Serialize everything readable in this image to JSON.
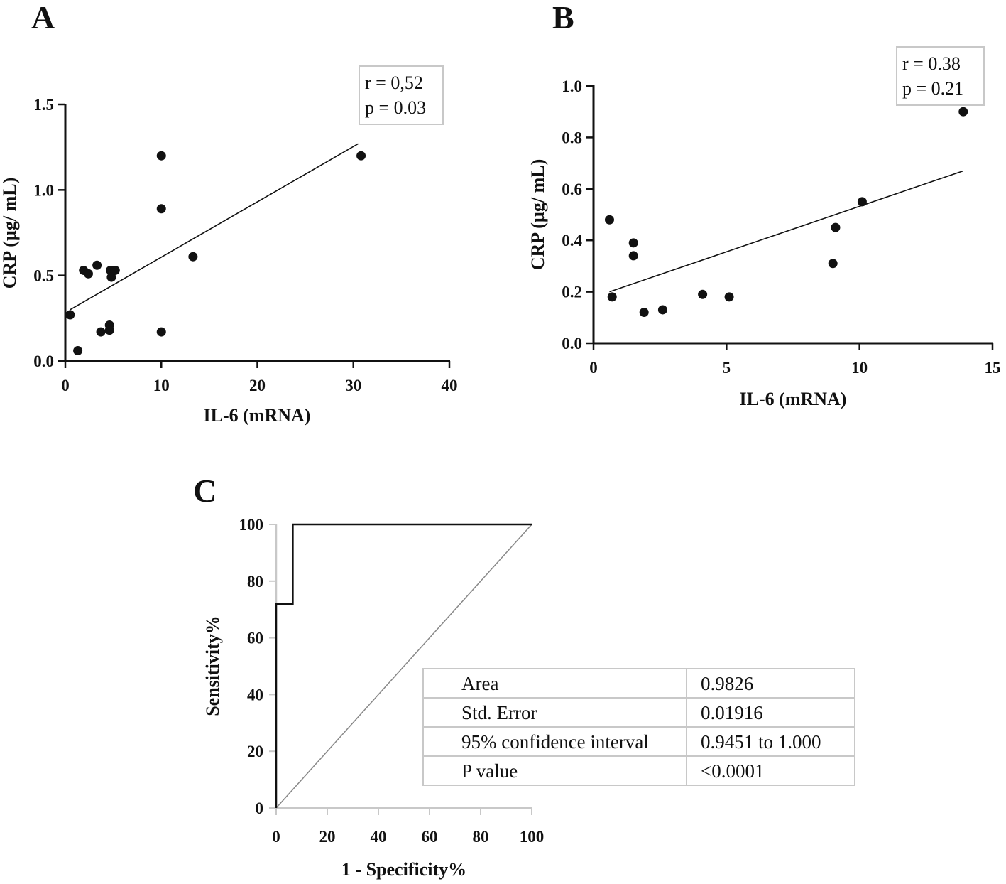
{
  "chart_data": [
    {
      "panel": "A",
      "type": "scatter",
      "xlabel": "IL-6 (mRNA)",
      "ylabel": "CRP (µg/ mL)",
      "xlim": [
        0,
        40
      ],
      "ylim": [
        0,
        1.5
      ],
      "xticks": [
        0,
        10,
        20,
        30,
        40
      ],
      "yticks": [
        0.0,
        0.5,
        1.0,
        1.5
      ],
      "xtick_labels": [
        "0",
        "10",
        "20",
        "30",
        "40"
      ],
      "ytick_labels": [
        "0.0",
        "0.5",
        "1.0",
        "1.5"
      ],
      "points": [
        {
          "x": 0.5,
          "y": 0.27
        },
        {
          "x": 1.3,
          "y": 0.06
        },
        {
          "x": 1.9,
          "y": 0.53
        },
        {
          "x": 2.4,
          "y": 0.51
        },
        {
          "x": 3.3,
          "y": 0.56
        },
        {
          "x": 3.7,
          "y": 0.17
        },
        {
          "x": 4.6,
          "y": 0.21
        },
        {
          "x": 4.6,
          "y": 0.18
        },
        {
          "x": 4.7,
          "y": 0.53
        },
        {
          "x": 4.8,
          "y": 0.49
        },
        {
          "x": 5.2,
          "y": 0.53
        },
        {
          "x": 10.0,
          "y": 1.2
        },
        {
          "x": 10.0,
          "y": 0.89
        },
        {
          "x": 10.0,
          "y": 0.17
        },
        {
          "x": 13.3,
          "y": 0.61
        },
        {
          "x": 30.8,
          "y": 1.2
        }
      ],
      "fit": {
        "x1": 0.5,
        "y1": 0.3,
        "x2": 30.5,
        "y2": 1.27
      },
      "annotation": [
        "r = 0,52",
        "p = 0.03"
      ]
    },
    {
      "panel": "B",
      "type": "scatter",
      "xlabel": "IL-6 (mRNA)",
      "ylabel": "CRP (µg/ mL)",
      "xlim": [
        0,
        15
      ],
      "ylim": [
        0,
        1.0
      ],
      "xticks": [
        0,
        5,
        10,
        15
      ],
      "yticks": [
        0.0,
        0.2,
        0.4,
        0.6,
        0.8,
        1.0
      ],
      "xtick_labels": [
        "0",
        "5",
        "10",
        "15"
      ],
      "ytick_labels": [
        "0.0",
        "0.2",
        "0.4",
        "0.6",
        "0.8",
        "1.0"
      ],
      "points": [
        {
          "x": 0.6,
          "y": 0.48
        },
        {
          "x": 0.7,
          "y": 0.18
        },
        {
          "x": 1.5,
          "y": 0.39
        },
        {
          "x": 1.5,
          "y": 0.34
        },
        {
          "x": 1.9,
          "y": 0.12
        },
        {
          "x": 2.6,
          "y": 0.13
        },
        {
          "x": 4.1,
          "y": 0.19
        },
        {
          "x": 5.1,
          "y": 0.18
        },
        {
          "x": 9.0,
          "y": 0.31
        },
        {
          "x": 9.1,
          "y": 0.45
        },
        {
          "x": 10.1,
          "y": 0.55
        },
        {
          "x": 13.9,
          "y": 0.9
        }
      ],
      "fit": {
        "x1": 0.6,
        "y1": 0.2,
        "x2": 13.9,
        "y2": 0.67
      },
      "annotation": [
        "r = 0.38",
        "p = 0.21"
      ]
    },
    {
      "panel": "C",
      "type": "line",
      "xlabel": "1 - Specificity%",
      "ylabel": "Sensitivity%",
      "xlim": [
        0,
        100
      ],
      "ylim": [
        0,
        100
      ],
      "xticks": [
        0,
        20,
        40,
        60,
        80,
        100
      ],
      "yticks": [
        0,
        20,
        40,
        60,
        80,
        100
      ],
      "xtick_labels": [
        "0",
        "20",
        "40",
        "60",
        "80",
        "100"
      ],
      "ytick_labels": [
        "0",
        "20",
        "40",
        "60",
        "80",
        "100"
      ],
      "roc": [
        {
          "x": 0,
          "y": 0
        },
        {
          "x": 0,
          "y": 72
        },
        {
          "x": 6.5,
          "y": 72
        },
        {
          "x": 6.5,
          "y": 100
        },
        {
          "x": 100,
          "y": 100
        }
      ],
      "reference": [
        {
          "x": 0,
          "y": 0
        },
        {
          "x": 100,
          "y": 100
        }
      ],
      "table": [
        [
          "Area",
          "0.9826"
        ],
        [
          "Std. Error",
          "0.01916"
        ],
        [
          "95% confidence interval",
          "0.9451 to 1.000"
        ],
        [
          "P value",
          "<0.0001"
        ]
      ]
    }
  ]
}
